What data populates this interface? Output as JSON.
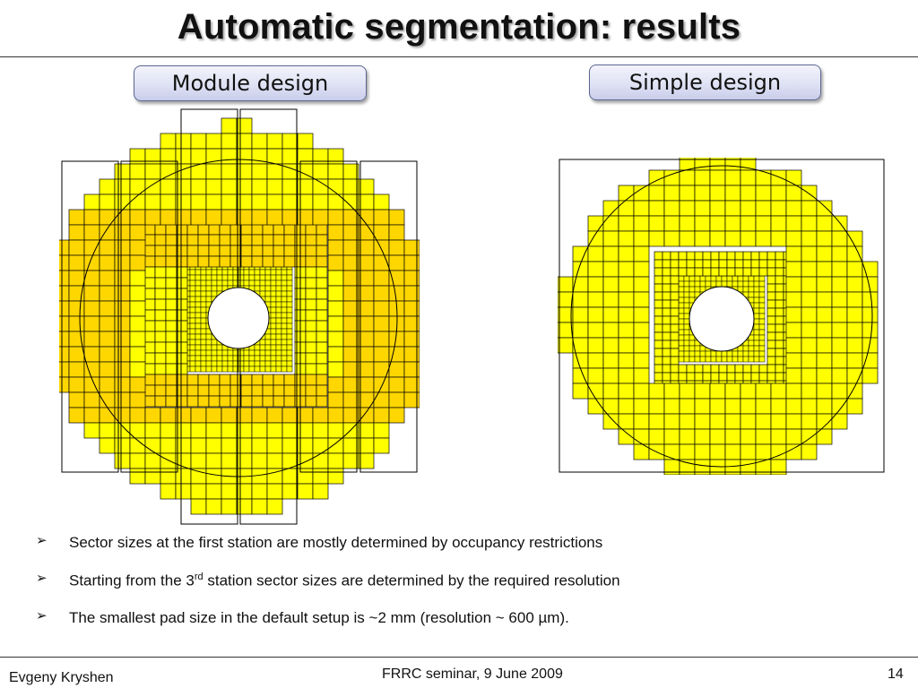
{
  "slide": {
    "title": "Automatic segmentation: results",
    "labels": {
      "left": "Module design",
      "right": "Simple design"
    },
    "bullets": [
      {
        "arrow": "➢",
        "text": "Sector sizes at the first station are mostly determined by occupancy restrictions"
      },
      {
        "arrow": "➢",
        "pre": "Starting from the 3",
        "sup": "rd",
        "post": " station sector sizes are determined by the required resolution"
      },
      {
        "arrow": "➢",
        "text": "The smallest pad size in the default setup is ~2 mm (resolution ~ 600 µm)."
      }
    ],
    "footer": {
      "author": "Evgeny Kryshen",
      "event": "FRRC seminar, 9 June 2009",
      "page": "14"
    },
    "colors": {
      "yellow": "#ffff00",
      "orange": "#ffd700",
      "line": "#000000"
    }
  }
}
